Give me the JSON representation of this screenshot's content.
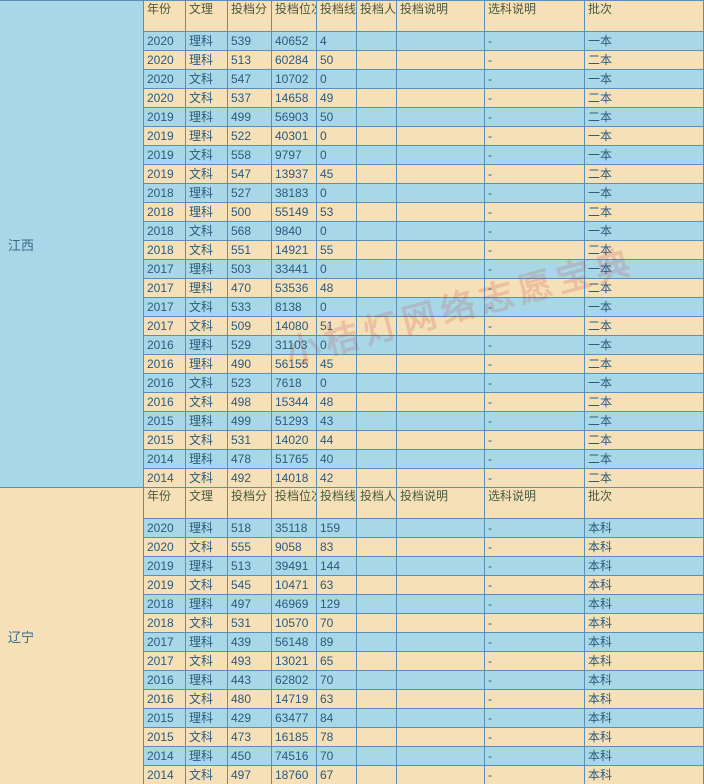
{
  "watermark": "小桔灯网络志愿宝典",
  "colors": {
    "blue": "#a8d8e8",
    "tan": "#f5e0b8",
    "border": "#5a8fb8"
  },
  "headers": [
    "年份",
    "文理",
    "投档分",
    "投档位次",
    "投档线差",
    "投档人数",
    "投档说明",
    "选科说明",
    "批次"
  ],
  "header_widths": [
    42,
    42,
    44,
    45,
    40,
    40,
    88,
    100,
    60
  ],
  "provinces": [
    {
      "name": "江西",
      "bg": "blue",
      "rows": [
        [
          "2020",
          "理科",
          "539",
          "40652",
          "4",
          "",
          "",
          "-",
          "一本",
          "blue"
        ],
        [
          "2020",
          "理科",
          "513",
          "60284",
          "50",
          "",
          "",
          "-",
          "二本",
          "tan"
        ],
        [
          "2020",
          "文科",
          "547",
          "10702",
          "0",
          "",
          "",
          "-",
          "一本",
          "blue"
        ],
        [
          "2020",
          "文科",
          "537",
          "14658",
          "49",
          "",
          "",
          "-",
          "二本",
          "tan"
        ],
        [
          "2019",
          "理科",
          "499",
          "56903",
          "50",
          "",
          "",
          "-",
          "二本",
          "blue"
        ],
        [
          "2019",
          "理科",
          "522",
          "40301",
          "0",
          "",
          "",
          "-",
          "一本",
          "tan"
        ],
        [
          "2019",
          "文科",
          "558",
          "9797",
          "0",
          "",
          "",
          "-",
          "一本",
          "blue"
        ],
        [
          "2019",
          "文科",
          "547",
          "13937",
          "45",
          "",
          "",
          "-",
          "二本",
          "tan"
        ],
        [
          "2018",
          "理科",
          "527",
          "38183",
          "0",
          "",
          "",
          "-",
          "一本",
          "blue"
        ],
        [
          "2018",
          "理科",
          "500",
          "55149",
          "53",
          "",
          "",
          "-",
          "二本",
          "tan"
        ],
        [
          "2018",
          "文科",
          "568",
          "9840",
          "0",
          "",
          "",
          "-",
          "一本",
          "blue"
        ],
        [
          "2018",
          "文科",
          "551",
          "14921",
          "55",
          "",
          "",
          "-",
          "二本",
          "tan"
        ],
        [
          "2017",
          "理科",
          "503",
          "33441",
          "0",
          "",
          "",
          "-",
          "一本",
          "blue"
        ],
        [
          "2017",
          "理科",
          "470",
          "53536",
          "48",
          "",
          "",
          "-",
          "二本",
          "tan"
        ],
        [
          "2017",
          "文科",
          "533",
          "8138",
          "0",
          "",
          "",
          "-",
          "一本",
          "blue"
        ],
        [
          "2017",
          "文科",
          "509",
          "14080",
          "51",
          "",
          "",
          "-",
          "二本",
          "tan"
        ],
        [
          "2016",
          "理科",
          "529",
          "31103",
          "0",
          "",
          "",
          "-",
          "一本",
          "blue"
        ],
        [
          "2016",
          "理科",
          "490",
          "56155",
          "45",
          "",
          "",
          "-",
          "二本",
          "tan"
        ],
        [
          "2016",
          "文科",
          "523",
          "7618",
          "0",
          "",
          "",
          "-",
          "一本",
          "blue"
        ],
        [
          "2016",
          "文科",
          "498",
          "15344",
          "48",
          "",
          "",
          "-",
          "二本",
          "tan"
        ],
        [
          "2015",
          "理科",
          "499",
          "51293",
          "43",
          "",
          "",
          "-",
          "二本",
          "blue"
        ],
        [
          "2015",
          "文科",
          "531",
          "14020",
          "44",
          "",
          "",
          "-",
          "二本",
          "tan"
        ],
        [
          "2014",
          "理科",
          "478",
          "51765",
          "40",
          "",
          "",
          "-",
          "二本",
          "blue"
        ],
        [
          "2014",
          "文科",
          "492",
          "14018",
          "42",
          "",
          "",
          "-",
          "二本",
          "tan"
        ]
      ]
    },
    {
      "name": "辽宁",
      "bg": "tan",
      "rows": [
        [
          "2020",
          "理科",
          "518",
          "35118",
          "159",
          "",
          "",
          "-",
          "本科",
          "blue"
        ],
        [
          "2020",
          "文科",
          "555",
          "9058",
          "83",
          "",
          "",
          "-",
          "本科",
          "tan"
        ],
        [
          "2019",
          "理科",
          "513",
          "39491",
          "144",
          "",
          "",
          "-",
          "本科",
          "blue"
        ],
        [
          "2019",
          "文科",
          "545",
          "10471",
          "63",
          "",
          "",
          "-",
          "本科",
          "tan"
        ],
        [
          "2018",
          "理科",
          "497",
          "46969",
          "129",
          "",
          "",
          "-",
          "本科",
          "blue"
        ],
        [
          "2018",
          "文科",
          "531",
          "10570",
          "70",
          "",
          "",
          "-",
          "本科",
          "tan"
        ],
        [
          "2017",
          "理科",
          "439",
          "56148",
          "89",
          "",
          "",
          "-",
          "本科",
          "blue"
        ],
        [
          "2017",
          "文科",
          "493",
          "13021",
          "65",
          "",
          "",
          "-",
          "本科",
          "tan"
        ],
        [
          "2016",
          "理科",
          "443",
          "62802",
          "70",
          "",
          "",
          "-",
          "本科",
          "blue"
        ],
        [
          "2016",
          "文科",
          "480",
          "14719",
          "63",
          "",
          "",
          "-",
          "本科",
          "tan"
        ],
        [
          "2015",
          "理科",
          "429",
          "63477",
          "84",
          "",
          "",
          "-",
          "本科",
          "blue"
        ],
        [
          "2015",
          "文科",
          "473",
          "16185",
          "78",
          "",
          "",
          "-",
          "本科",
          "tan"
        ],
        [
          "2014",
          "理科",
          "450",
          "74516",
          "70",
          "",
          "",
          "-",
          "本科",
          "blue"
        ],
        [
          "2014",
          "文科",
          "497",
          "18760",
          "67",
          "",
          "",
          "-",
          "本科",
          "tan"
        ]
      ]
    }
  ]
}
